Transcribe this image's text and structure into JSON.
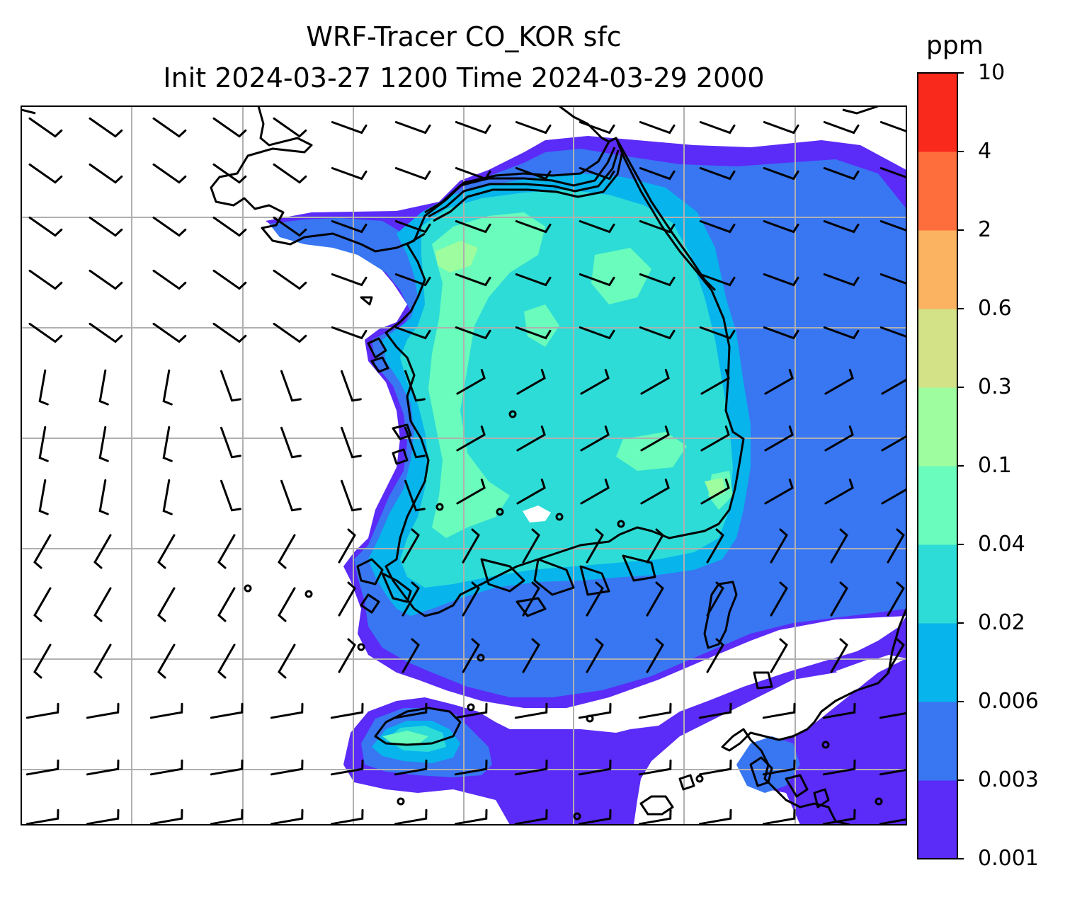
{
  "figure": {
    "title_line1": "WRF-Tracer CO_KOR sfc",
    "title_line2": "Init 2024-03-27 1200 Time 2024-03-29 2000"
  },
  "colorbar": {
    "unit_label": "ppm",
    "levels": [
      "0.001",
      "0.003",
      "0.006",
      "0.02",
      "0.04",
      "0.1",
      "0.3",
      "0.6",
      "2",
      "4",
      "10"
    ],
    "colors": [
      "#5b2bf7",
      "#3876f2",
      "#07b4eb",
      "#2ddcd6",
      "#6afcbc",
      "#9efd9e",
      "#d3e187",
      "#fbb261",
      "#fd6e3c",
      "#f9291b"
    ]
  },
  "map": {
    "land_outline_color": "#000000",
    "grid_color": "#b0b0b0",
    "features": [
      "korean-peninsula",
      "jeju-island",
      "tsushima-island",
      "kyushu"
    ]
  }
}
